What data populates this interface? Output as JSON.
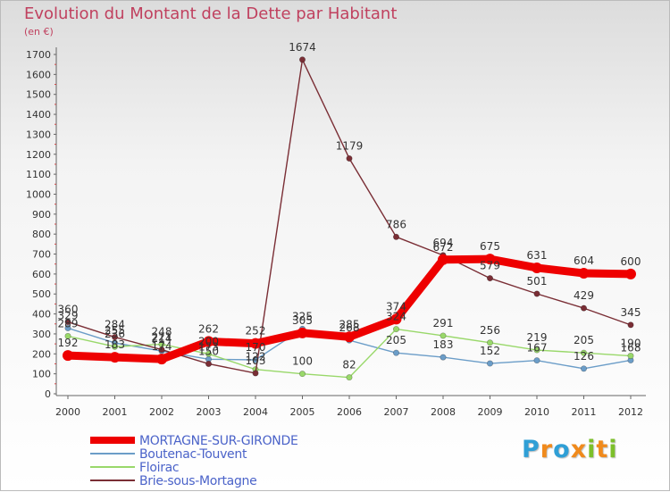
{
  "title": "Evolution du Montant de la Dette par Habitant",
  "unit_label": "(en €)",
  "logo": {
    "text": "Proxiti",
    "letters": [
      {
        "char": "P",
        "color": "#2f9fd6"
      },
      {
        "char": "r",
        "color": "#f08a1c"
      },
      {
        "char": "o",
        "color": "#2f9fd6"
      },
      {
        "char": "x",
        "color": "#f08a1c"
      },
      {
        "char": "i",
        "color": "#7cbf2a"
      },
      {
        "char": "t",
        "color": "#f08a1c"
      },
      {
        "char": "i",
        "color": "#7cbf2a"
      }
    ]
  },
  "chart_data": {
    "type": "line",
    "title": "Evolution du Montant de la Dette par Habitant",
    "ylabel": "(en €)",
    "xlabel": "",
    "ylim": [
      0,
      1700
    ],
    "y_ticks": [
      0,
      100,
      200,
      300,
      400,
      500,
      600,
      700,
      800,
      900,
      1000,
      1100,
      1200,
      1300,
      1400,
      1500,
      1600,
      1700
    ],
    "x": [
      "2000",
      "2001",
      "2002",
      "2003",
      "2004",
      "2005",
      "2006",
      "2007",
      "2008",
      "2009",
      "2010",
      "2011",
      "2012"
    ],
    "grid": false,
    "legend_position": "bottom-left",
    "series": [
      {
        "name": "Boutenac-Touvent",
        "color": "#6b9dc8",
        "values": [
          329,
          255,
          214,
          173,
          170,
          325,
          268,
          205,
          183,
          152,
          167,
          126,
          168
        ]
      },
      {
        "name": "Floirac",
        "color": "#99d86a",
        "values": [
          289,
          236,
          248,
          200,
          122,
          100,
          82,
          324,
          291,
          256,
          219,
          205,
          190
        ]
      },
      {
        "name": "Brie-sous-Mortagne",
        "color": "#7a2e35",
        "values": [
          360,
          284,
          221,
          150,
          103,
          1674,
          1179,
          786,
          694,
          579,
          501,
          429,
          345
        ]
      },
      {
        "name": "MORTAGNE-SUR-GIRONDE",
        "color": "#ee0000",
        "values": [
          192,
          183,
          174,
          262,
          252,
          305,
          285,
          374,
          672,
          675,
          631,
          604,
          600
        ]
      }
    ]
  },
  "legend_order": [
    "MORTAGNE-SUR-GIRONDE",
    "Boutenac-Touvent",
    "Floirac",
    "Brie-sous-Mortagne"
  ]
}
